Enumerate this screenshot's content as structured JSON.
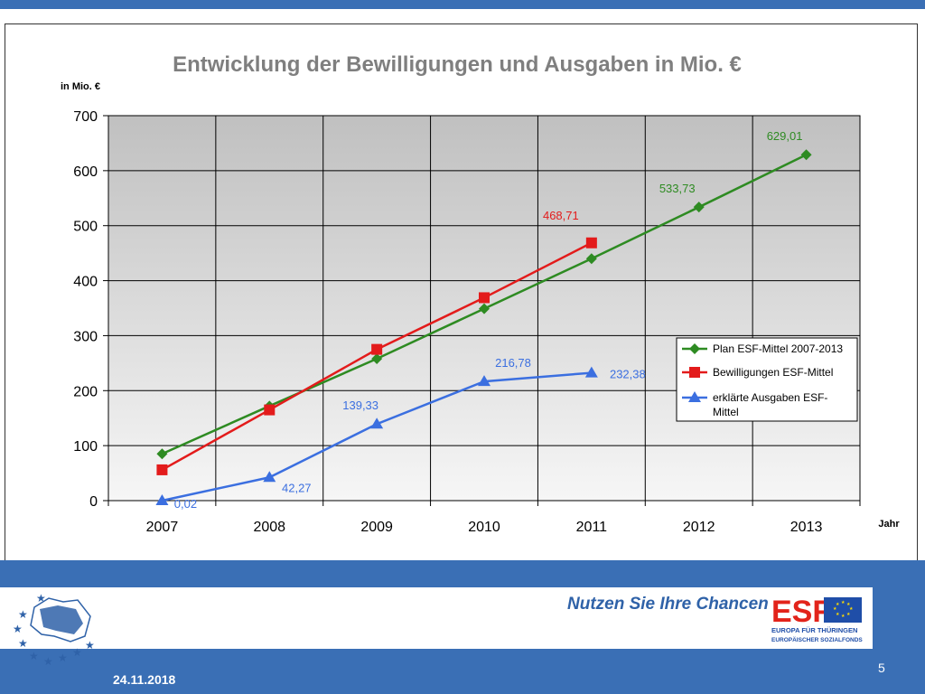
{
  "slide": {
    "slogan": "Nutzen Sie Ihre Chancen",
    "date": "24.11.2018",
    "page_number": "5",
    "esf_logo": {
      "text": "ESF",
      "line1": "EUROPA FÜR THÜRINGEN",
      "line2": "EUROPÄISCHER SOZIALFONDS"
    },
    "colors": {
      "band": "#3a6fb5",
      "plan": "#2e8b22",
      "approvals": "#e31b1b",
      "expenses": "#3b6fe0"
    }
  },
  "chart_data": {
    "type": "line",
    "title": "Entwicklung der Bewilligungen und Ausgaben in Mio. €",
    "ylabel": "in Mio. €",
    "xlabel": "Jahr",
    "categories": [
      "2007",
      "2008",
      "2009",
      "2010",
      "2011",
      "2012",
      "2013"
    ],
    "ylim": [
      0,
      700
    ],
    "yticks": [
      "0",
      "100",
      "200",
      "300",
      "400",
      "500",
      "600",
      "700"
    ],
    "grid": true,
    "legend_position": "right",
    "series": [
      {
        "name": "Plan ESF-Mittel 2007-2013",
        "marker": "diamond",
        "color": "#2e8b22",
        "values": [
          85,
          172,
          258,
          349,
          440,
          533.73,
          629.01
        ],
        "labels": [
          "",
          "",
          "",
          "",
          "",
          "533,73",
          "629,01"
        ]
      },
      {
        "name": "Bewilligungen ESF-Mittel",
        "marker": "square",
        "color": "#e31b1b",
        "values": [
          56,
          165,
          275,
          369,
          468.71,
          null,
          null
        ],
        "labels": [
          "",
          "",
          "",
          "",
          "468,71",
          "",
          ""
        ]
      },
      {
        "name": "erklärte Ausgaben ESF-Mittel",
        "marker": "triangle",
        "color": "#3b6fe0",
        "values": [
          0.02,
          42.27,
          139.33,
          216.78,
          232.38,
          null,
          null
        ],
        "labels": [
          "0,02",
          "42,27",
          "139,33",
          "216,78",
          "232,38",
          "",
          ""
        ]
      }
    ]
  }
}
